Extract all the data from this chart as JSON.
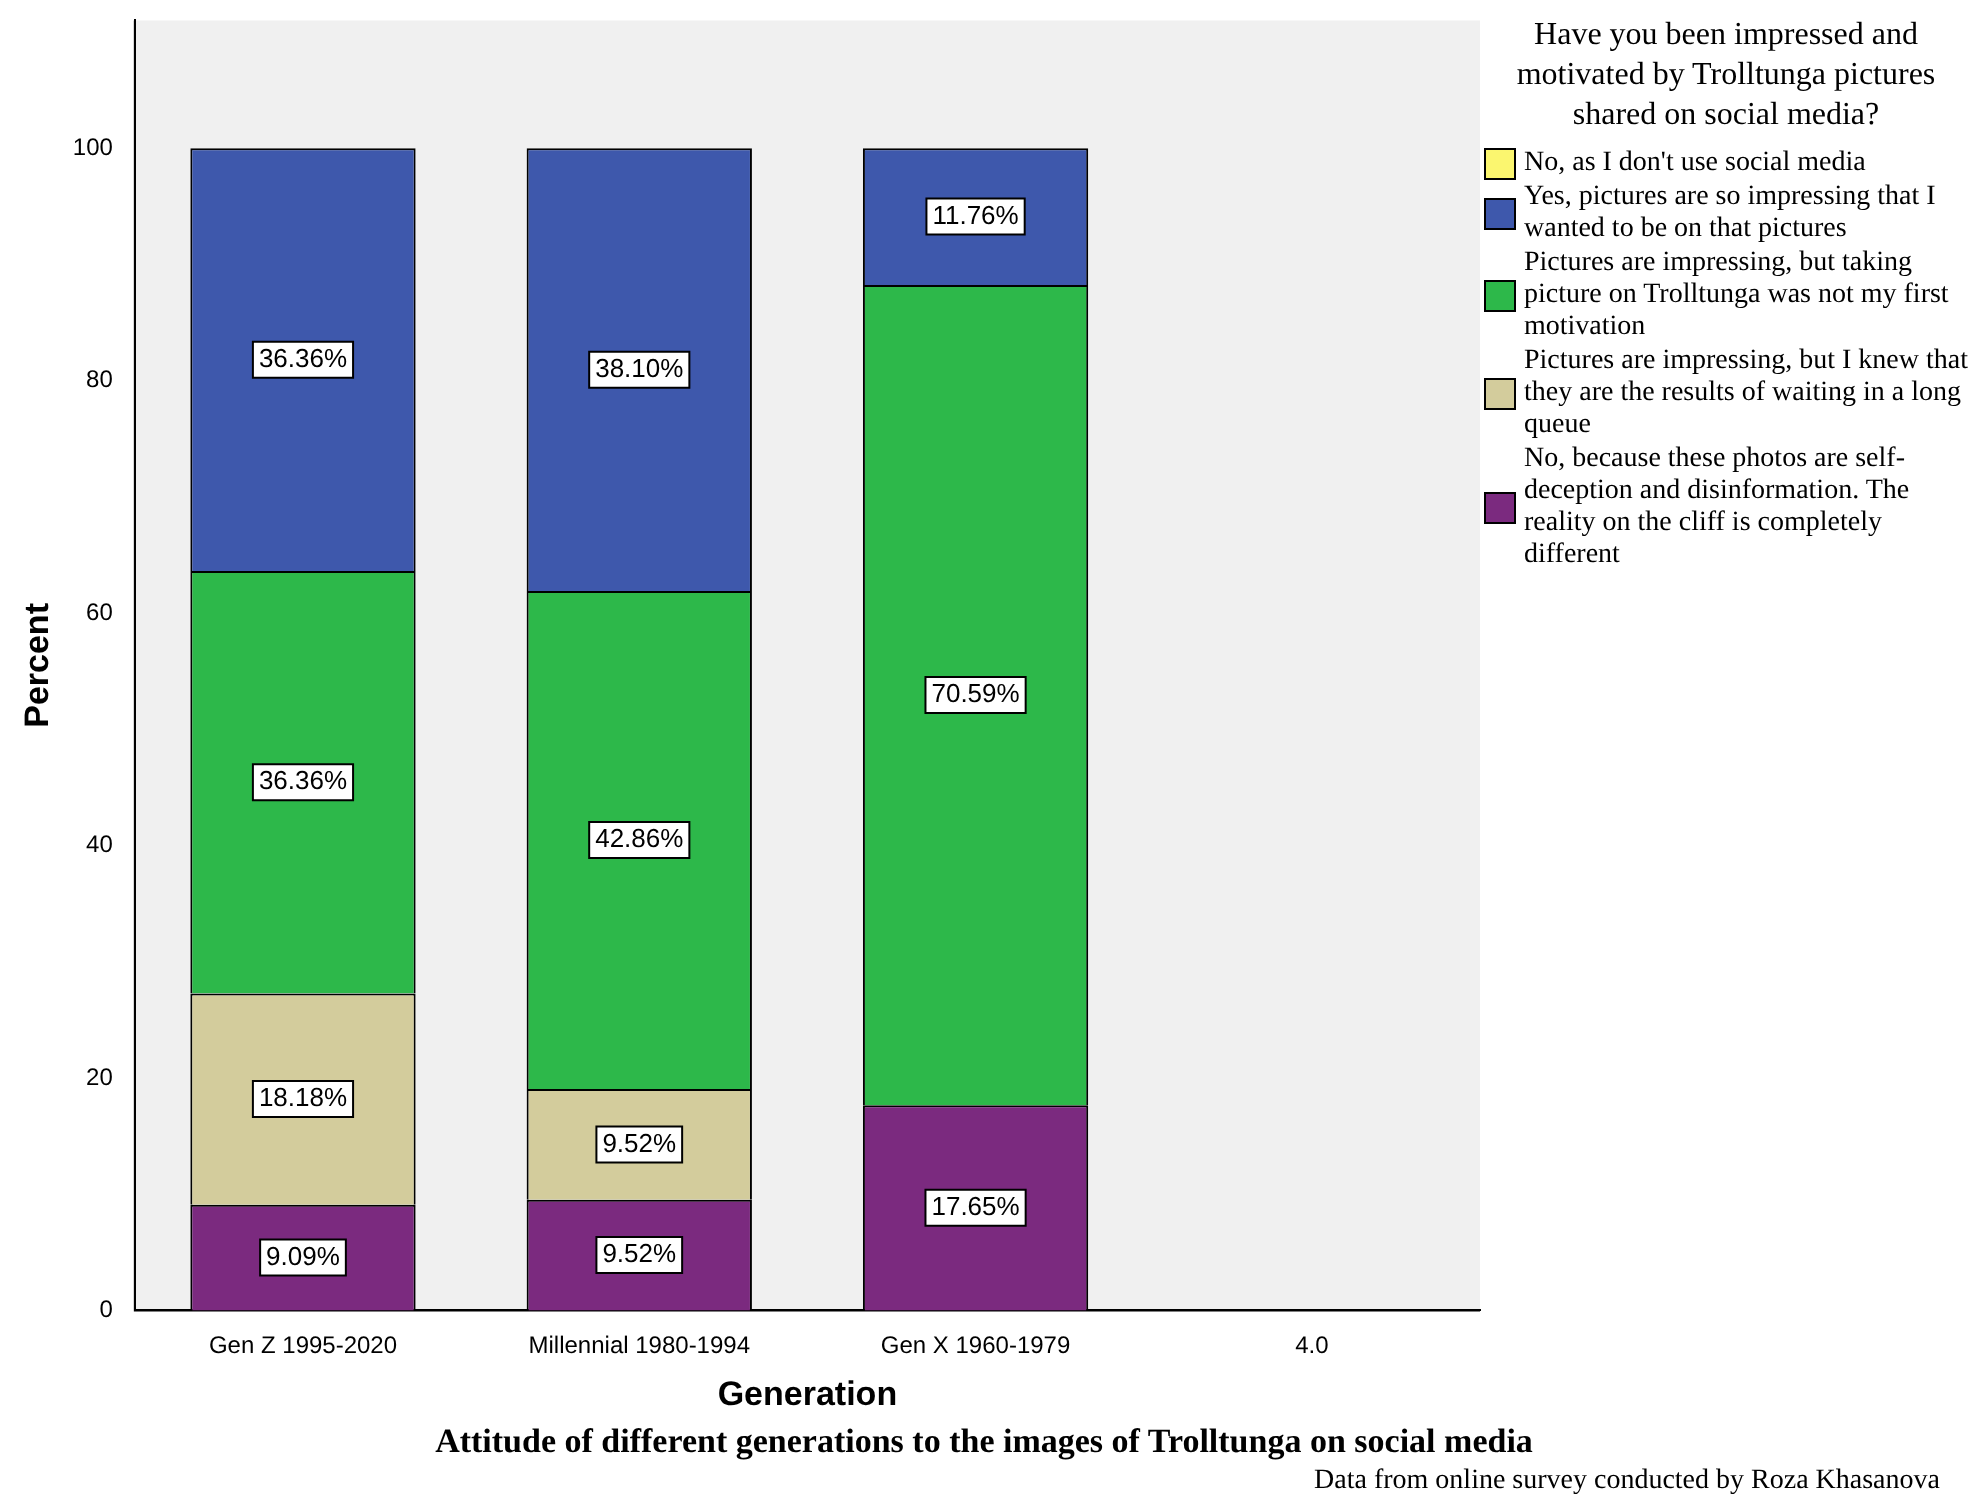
{
  "chart_data": {
    "type": "bar",
    "stacked": true,
    "title": "Attitude of different generations to the images of Trolltunga on social media",
    "xlabel": "Generation",
    "ylabel": "Percent",
    "legend_title": "Have you been impressed and motivated by Trolltunga pictures shared on social media?",
    "annotations": [
      "Data from online survey conducted by Roza Khasanova"
    ],
    "categories": [
      "Gen Z 1995-2020",
      "Millennial 1980-1994",
      "Gen X 1960-1979",
      "4.0"
    ],
    "series": [
      {
        "name": "No, because these photos are self-deception and disinformation. The reality on the cliff is completely different",
        "color": "#7b2a7f",
        "values": [
          9.09,
          9.52,
          17.65,
          null
        ],
        "value_labels": [
          "9.09%",
          "9.52%",
          "17.65%",
          null
        ]
      },
      {
        "name": "Pictures are impressing, but I knew that they are the results of waiting in a long queue",
        "color": "#d3cc9c",
        "values": [
          18.18,
          9.52,
          null,
          null
        ],
        "value_labels": [
          "18.18%",
          "9.52%",
          null,
          null
        ]
      },
      {
        "name": "Pictures are impressing, but taking picture on Trolltunga was not my first motivation",
        "color": "#2db84a",
        "values": [
          36.36,
          42.86,
          70.59,
          null
        ],
        "value_labels": [
          "36.36%",
          "42.86%",
          "70.59%",
          null
        ]
      },
      {
        "name": "Yes, pictures are so impressing that I wanted to be on that pictures",
        "color": "#3e58ac",
        "values": [
          36.36,
          38.1,
          11.76,
          null
        ],
        "value_labels": [
          "36.36%",
          "38.10%",
          "11.76%",
          null
        ]
      },
      {
        "name": "No, as I don't use social media",
        "color": "#fbf66f",
        "values": [
          null,
          null,
          null,
          null
        ]
      }
    ],
    "ylim": [
      0,
      111
    ],
    "yticks": [
      0,
      20,
      40,
      60,
      80,
      100
    ],
    "grid": false,
    "legend": "right"
  }
}
